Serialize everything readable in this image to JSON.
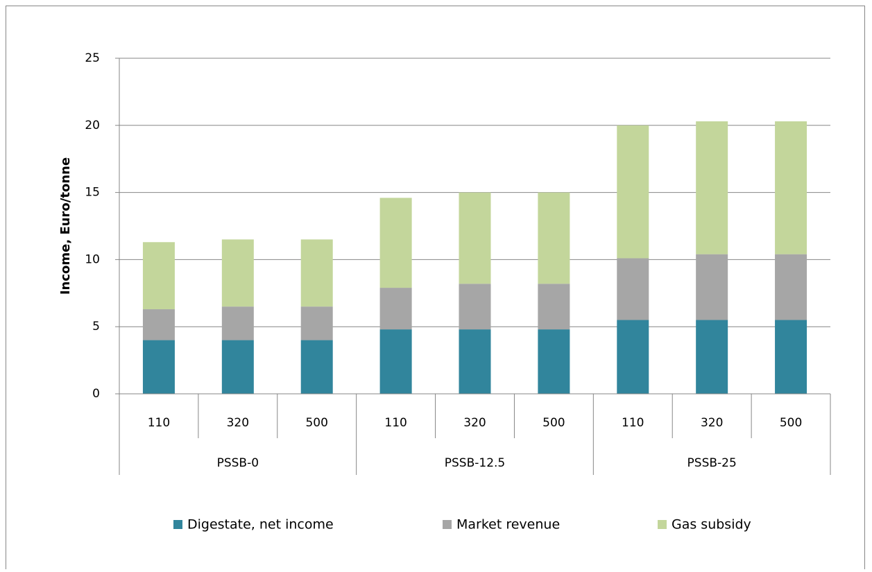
{
  "chart_data": {
    "type": "stacked_bar",
    "y_axis_label": "Income, Euro/tonne",
    "categories": [
      "110",
      "320",
      "500",
      "110",
      "320",
      "500",
      "110",
      "320",
      "500"
    ],
    "groups": [
      "PSSB-0",
      "PSSB-12.5",
      "PSSB-25"
    ],
    "series": [
      {
        "name": "Digestate, net income",
        "color": "#31859c",
        "values": [
          4.0,
          4.0,
          4.0,
          4.8,
          4.8,
          4.8,
          5.5,
          5.5,
          5.5
        ]
      },
      {
        "name": "Market revenue",
        "color": "#a6a6a6",
        "values": [
          2.3,
          2.5,
          2.5,
          3.1,
          3.4,
          3.4,
          4.6,
          4.9,
          4.9
        ]
      },
      {
        "name": "Gas subsidy",
        "color": "#c3d69b",
        "values": [
          5.0,
          5.0,
          5.0,
          6.7,
          6.8,
          6.8,
          9.9,
          9.9,
          9.9
        ]
      }
    ],
    "ylim": [
      0,
      25
    ],
    "yticks": [
      0,
      5,
      10,
      15,
      20,
      25
    ],
    "grid": true,
    "legend": "bottom"
  }
}
